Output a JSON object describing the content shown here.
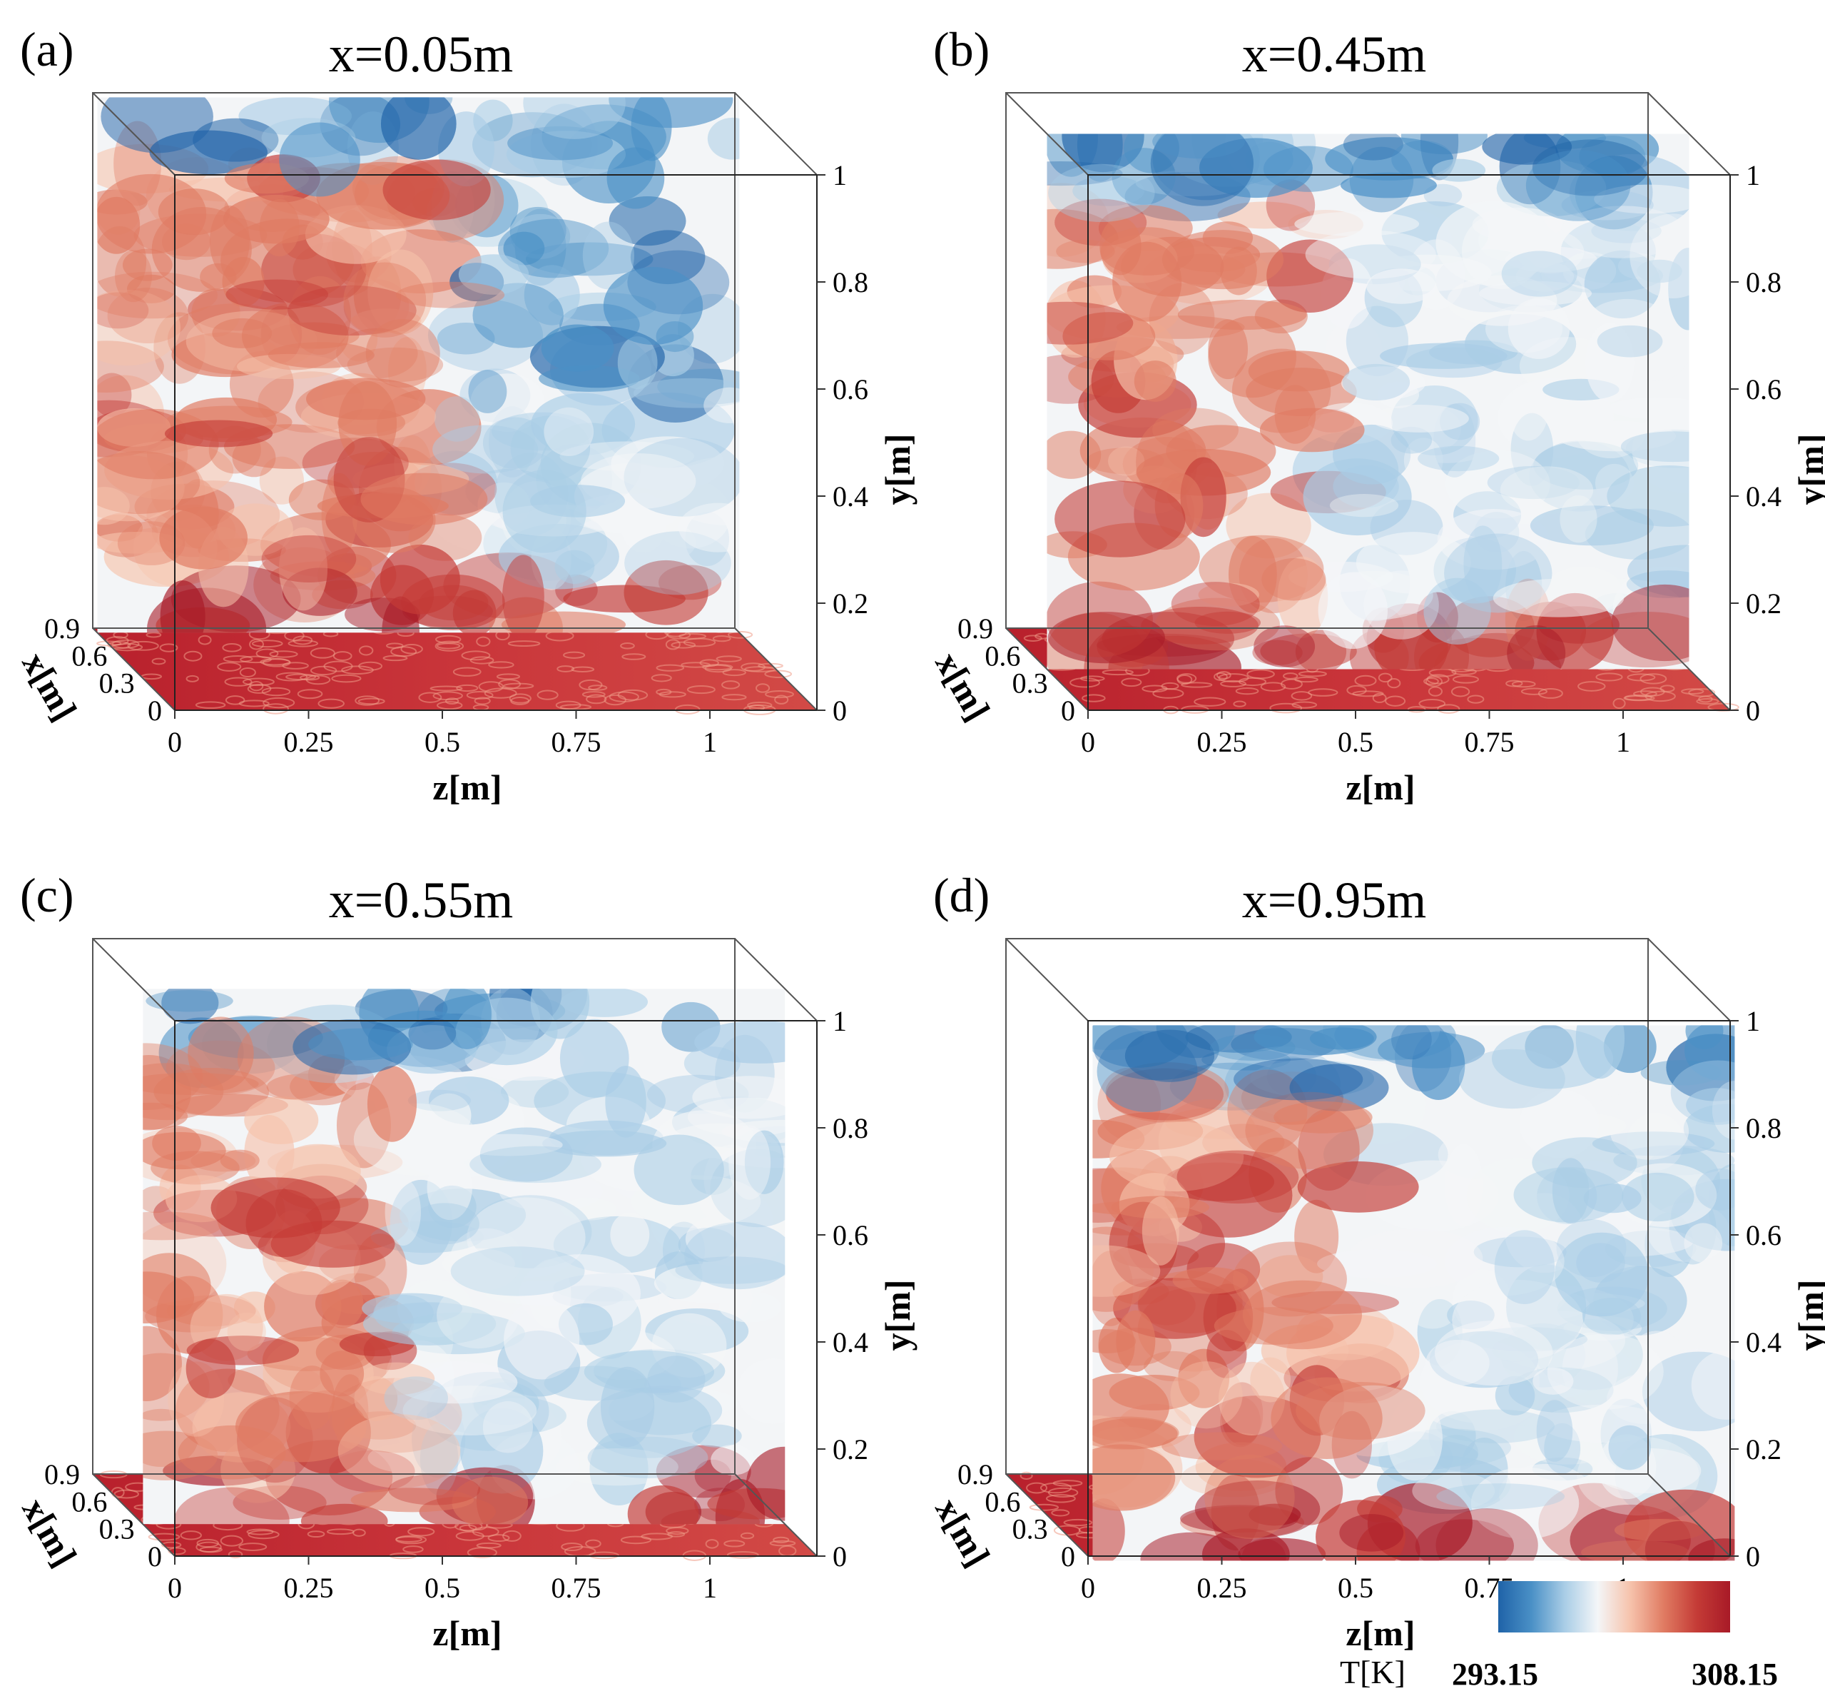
{
  "figure": {
    "colorbar": {
      "label": "T[K]",
      "min_label": "293.15",
      "max_label": "308.15",
      "min": 293.15,
      "max": 308.15,
      "colors": [
        "#1f63a8",
        "#4a90c6",
        "#a9cde6",
        "#f4f6f8",
        "#f6c2ab",
        "#e07b62",
        "#c43b36",
        "#a81a27"
      ]
    },
    "panels": [
      {
        "label": "(a)",
        "title": "x=0.05m",
        "slice_x": 0.05
      },
      {
        "label": "(b)",
        "title": "x=0.45m",
        "slice_x": 0.45
      },
      {
        "label": "(c)",
        "title": "x=0.55m",
        "slice_x": 0.55
      },
      {
        "label": "(d)",
        "title": "x=0.95m",
        "slice_x": 0.95
      }
    ],
    "axes": {
      "z": {
        "label": "z[m]",
        "ticks": [
          "0",
          "0.25",
          "0.5",
          "0.75",
          "1"
        ]
      },
      "y": {
        "label": "y[m]",
        "ticks": [
          "0",
          "0.2",
          "0.4",
          "0.6",
          "0.8",
          "1"
        ]
      },
      "x": {
        "label": "x[m]",
        "ticks": [
          "0",
          "0.3",
          "0.6",
          "0.9"
        ]
      }
    }
  }
}
